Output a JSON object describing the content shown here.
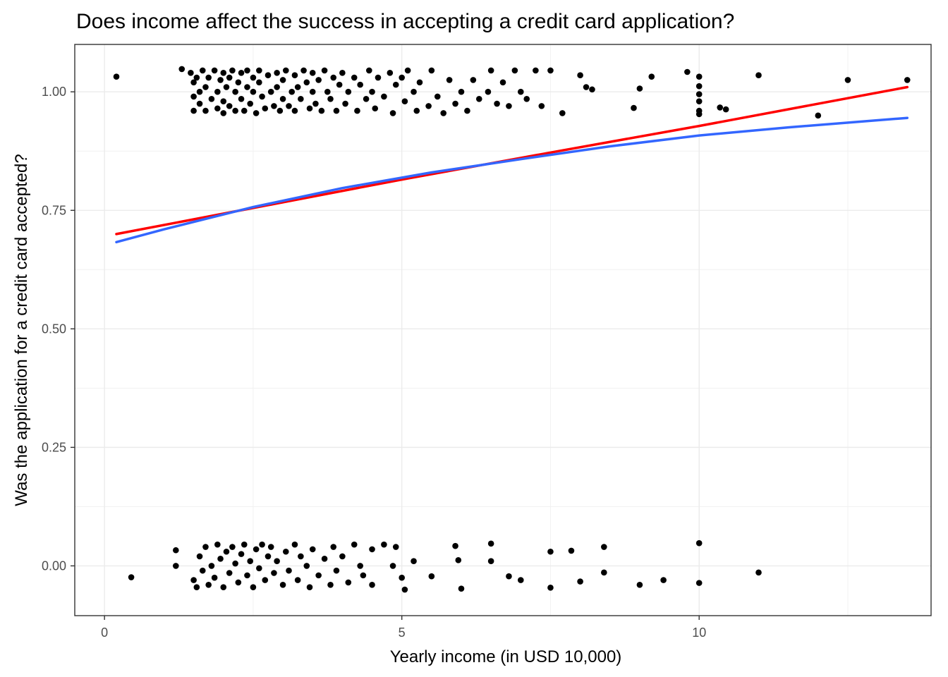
{
  "chart_data": {
    "type": "scatter",
    "title": "Does income affect the success in accepting a credit card application?",
    "xlabel": "Yearly income (in USD 10,000)",
    "ylabel": "Was the application for a credit card accepted?",
    "xlim": [
      -0.5,
      13.9
    ],
    "ylim": [
      -0.105,
      1.1
    ],
    "x_ticks": [
      0,
      5,
      10
    ],
    "x_tick_labels": [
      "0",
      "5",
      "10"
    ],
    "y_ticks": [
      0,
      0.25,
      0.5,
      0.75,
      1.0
    ],
    "y_tick_labels": [
      "0.00",
      "0.25",
      "0.50",
      "0.75",
      "1.00"
    ],
    "grid": true,
    "legend": "none",
    "point_color": "#000000",
    "series": [
      {
        "kind": "points",
        "points": [
          [
            0.2,
            1.032
          ],
          [
            1.3,
            1.048
          ],
          [
            1.45,
            1.04
          ],
          [
            1.5,
            1.02
          ],
          [
            1.5,
            0.99
          ],
          [
            1.5,
            0.96
          ],
          [
            1.55,
            1.03
          ],
          [
            1.6,
            1.0
          ],
          [
            1.6,
            0.975
          ],
          [
            1.65,
            1.045
          ],
          [
            1.7,
            1.01
          ],
          [
            1.7,
            0.96
          ],
          [
            1.75,
            1.03
          ],
          [
            1.8,
            0.985
          ],
          [
            1.85,
            1.045
          ],
          [
            1.9,
            1.0
          ],
          [
            1.9,
            0.965
          ],
          [
            1.95,
            1.025
          ],
          [
            2.0,
            1.04
          ],
          [
            2.0,
            0.98
          ],
          [
            2.0,
            0.955
          ],
          [
            2.05,
            1.01
          ],
          [
            2.1,
            1.03
          ],
          [
            2.1,
            0.97
          ],
          [
            2.15,
            1.045
          ],
          [
            2.2,
            1.0
          ],
          [
            2.2,
            0.96
          ],
          [
            2.25,
            1.02
          ],
          [
            2.3,
            1.04
          ],
          [
            2.3,
            0.985
          ],
          [
            2.35,
            0.96
          ],
          [
            2.4,
            1.01
          ],
          [
            2.4,
            1.045
          ],
          [
            2.45,
            0.975
          ],
          [
            2.5,
            1.03
          ],
          [
            2.5,
            1.0
          ],
          [
            2.55,
            0.955
          ],
          [
            2.6,
            1.02
          ],
          [
            2.6,
            1.045
          ],
          [
            2.65,
            0.99
          ],
          [
            2.7,
            0.965
          ],
          [
            2.75,
            1.035
          ],
          [
            2.8,
            1.0
          ],
          [
            2.85,
            0.97
          ],
          [
            2.9,
            1.04
          ],
          [
            2.9,
            1.01
          ],
          [
            2.95,
            0.96
          ],
          [
            3.0,
            1.025
          ],
          [
            3.0,
            0.985
          ],
          [
            3.05,
            1.045
          ],
          [
            3.1,
            0.97
          ],
          [
            3.15,
            1.0
          ],
          [
            3.2,
            1.035
          ],
          [
            3.2,
            0.96
          ],
          [
            3.25,
            1.01
          ],
          [
            3.3,
            0.985
          ],
          [
            3.35,
            1.045
          ],
          [
            3.4,
            1.02
          ],
          [
            3.45,
            0.965
          ],
          [
            3.5,
            1.0
          ],
          [
            3.5,
            1.04
          ],
          [
            3.55,
            0.975
          ],
          [
            3.6,
            1.025
          ],
          [
            3.65,
            0.96
          ],
          [
            3.7,
            1.045
          ],
          [
            3.75,
            1.0
          ],
          [
            3.8,
            0.985
          ],
          [
            3.85,
            1.03
          ],
          [
            3.9,
            0.96
          ],
          [
            3.95,
            1.015
          ],
          [
            4.0,
            1.04
          ],
          [
            4.05,
            0.975
          ],
          [
            4.1,
            1.0
          ],
          [
            4.2,
            1.03
          ],
          [
            4.25,
            0.96
          ],
          [
            4.3,
            1.015
          ],
          [
            4.4,
            0.985
          ],
          [
            4.45,
            1.045
          ],
          [
            4.5,
            1.0
          ],
          [
            4.55,
            0.965
          ],
          [
            4.6,
            1.03
          ],
          [
            4.7,
            0.99
          ],
          [
            4.8,
            1.04
          ],
          [
            4.85,
            0.955
          ],
          [
            4.9,
            1.015
          ],
          [
            5.0,
            1.03
          ],
          [
            5.05,
            0.98
          ],
          [
            5.1,
            1.045
          ],
          [
            5.2,
            1.0
          ],
          [
            5.25,
            0.96
          ],
          [
            5.3,
            1.02
          ],
          [
            5.45,
            0.97
          ],
          [
            5.5,
            1.045
          ],
          [
            5.6,
            0.99
          ],
          [
            5.7,
            0.955
          ],
          [
            5.8,
            1.025
          ],
          [
            5.9,
            0.975
          ],
          [
            6.0,
            1.0
          ],
          [
            6.1,
            0.96
          ],
          [
            6.2,
            1.025
          ],
          [
            6.3,
            0.985
          ],
          [
            6.45,
            1.0
          ],
          [
            6.5,
            1.045
          ],
          [
            6.6,
            0.975
          ],
          [
            6.7,
            1.02
          ],
          [
            6.8,
            0.97
          ],
          [
            6.9,
            1.045
          ],
          [
            7.0,
            1.0
          ],
          [
            7.1,
            0.985
          ],
          [
            7.25,
            1.045
          ],
          [
            7.35,
            0.97
          ],
          [
            7.5,
            1.045
          ],
          [
            7.7,
            0.955
          ],
          [
            8.0,
            1.035
          ],
          [
            8.1,
            1.01
          ],
          [
            8.2,
            1.005
          ],
          [
            8.9,
            0.966
          ],
          [
            9.0,
            1.007
          ],
          [
            9.2,
            1.032
          ],
          [
            9.8,
            1.042
          ],
          [
            10.0,
            1.032
          ],
          [
            10.0,
            1.012
          ],
          [
            10.0,
            0.995
          ],
          [
            10.0,
            0.98
          ],
          [
            10.0,
            0.96
          ],
          [
            10.0,
            0.953
          ],
          [
            10.35,
            0.967
          ],
          [
            10.45,
            0.963
          ],
          [
            11.0,
            1.035
          ],
          [
            12.0,
            0.95
          ],
          [
            12.5,
            1.025
          ],
          [
            13.5,
            1.025
          ],
          [
            0.45,
            -0.024
          ],
          [
            1.2,
            0.033
          ],
          [
            1.2,
            0.0
          ],
          [
            1.5,
            -0.03
          ],
          [
            1.55,
            -0.045
          ],
          [
            1.6,
            0.02
          ],
          [
            1.65,
            -0.01
          ],
          [
            1.7,
            0.04
          ],
          [
            1.75,
            -0.04
          ],
          [
            1.8,
            0.0
          ],
          [
            1.85,
            -0.025
          ],
          [
            1.9,
            0.045
          ],
          [
            1.95,
            0.015
          ],
          [
            2.0,
            -0.045
          ],
          [
            2.05,
            0.03
          ],
          [
            2.1,
            -0.015
          ],
          [
            2.15,
            0.04
          ],
          [
            2.2,
            0.005
          ],
          [
            2.25,
            -0.035
          ],
          [
            2.3,
            0.025
          ],
          [
            2.35,
            0.045
          ],
          [
            2.4,
            -0.02
          ],
          [
            2.45,
            0.01
          ],
          [
            2.5,
            -0.045
          ],
          [
            2.55,
            0.035
          ],
          [
            2.6,
            -0.005
          ],
          [
            2.65,
            0.045
          ],
          [
            2.7,
            -0.03
          ],
          [
            2.75,
            0.02
          ],
          [
            2.8,
            0.04
          ],
          [
            2.85,
            -0.015
          ],
          [
            2.9,
            0.01
          ],
          [
            3.0,
            -0.04
          ],
          [
            3.05,
            0.03
          ],
          [
            3.1,
            -0.01
          ],
          [
            3.2,
            0.045
          ],
          [
            3.25,
            -0.03
          ],
          [
            3.3,
            0.02
          ],
          [
            3.4,
            0.0
          ],
          [
            3.45,
            -0.045
          ],
          [
            3.5,
            0.035
          ],
          [
            3.6,
            -0.02
          ],
          [
            3.7,
            0.015
          ],
          [
            3.8,
            -0.04
          ],
          [
            3.85,
            0.04
          ],
          [
            3.9,
            -0.01
          ],
          [
            4.0,
            0.02
          ],
          [
            4.1,
            -0.035
          ],
          [
            4.2,
            0.045
          ],
          [
            4.3,
            0.0
          ],
          [
            4.35,
            -0.02
          ],
          [
            4.5,
            0.035
          ],
          [
            4.5,
            -0.04
          ],
          [
            4.7,
            0.045
          ],
          [
            4.85,
            0.0
          ],
          [
            4.9,
            0.04
          ],
          [
            5.0,
            -0.025
          ],
          [
            5.05,
            -0.05
          ],
          [
            5.2,
            0.01
          ],
          [
            5.5,
            -0.022
          ],
          [
            5.9,
            0.042
          ],
          [
            5.95,
            0.012
          ],
          [
            6.0,
            -0.048
          ],
          [
            6.5,
            0.047
          ],
          [
            6.5,
            0.01
          ],
          [
            6.8,
            -0.022
          ],
          [
            7.0,
            -0.03
          ],
          [
            7.5,
            0.03
          ],
          [
            7.5,
            -0.046
          ],
          [
            7.85,
            0.032
          ],
          [
            8.0,
            -0.033
          ],
          [
            8.4,
            0.04
          ],
          [
            8.4,
            -0.014
          ],
          [
            9.0,
            -0.04
          ],
          [
            9.4,
            -0.03
          ],
          [
            10.0,
            0.048
          ],
          [
            10.0,
            -0.036
          ],
          [
            11.0,
            -0.014
          ]
        ]
      },
      {
        "kind": "line",
        "color": "#ff0000",
        "points": [
          [
            0.2,
            0.7
          ],
          [
            2.5,
            0.755
          ],
          [
            5.0,
            0.815
          ],
          [
            7.5,
            0.872
          ],
          [
            10.0,
            0.928
          ],
          [
            13.5,
            1.01
          ]
        ]
      },
      {
        "kind": "line",
        "color": "#3366ff",
        "points": [
          [
            0.2,
            0.683
          ],
          [
            1.0,
            0.71
          ],
          [
            2.5,
            0.757
          ],
          [
            4.0,
            0.797
          ],
          [
            5.5,
            0.83
          ],
          [
            7.0,
            0.858
          ],
          [
            8.5,
            0.885
          ],
          [
            10.0,
            0.908
          ],
          [
            11.5,
            0.925
          ],
          [
            13.5,
            0.945
          ]
        ]
      }
    ]
  }
}
